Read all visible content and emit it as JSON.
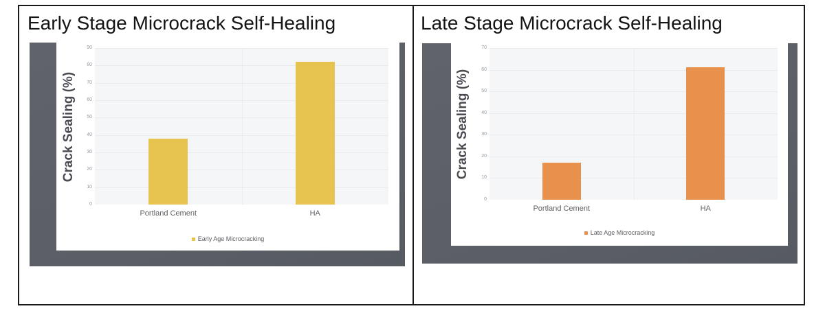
{
  "colors": {
    "frame_gray": "#60646a",
    "plot_bg": "#f5f6f8",
    "table_border": "#191919"
  },
  "chart_data": [
    {
      "type": "bar",
      "title": "Early Stage Microcrack Self-Healing",
      "categories": [
        "Portland Cement",
        "HA"
      ],
      "values": [
        38,
        82
      ],
      "xlabel": "",
      "ylabel": "Crack Sealing (%)",
      "ylim": [
        0,
        90
      ],
      "ytick_step": 10,
      "grid": true,
      "legend": [
        "Early Age Microcracking"
      ],
      "legend_position": "bottom",
      "bar_color": "#e7c34f"
    },
    {
      "type": "bar",
      "title": "Late Stage Microcrack Self-Healing",
      "categories": [
        "Portland Cement",
        "HA"
      ],
      "values": [
        17,
        61
      ],
      "xlabel": "",
      "ylabel": "Crack Sealing (%)",
      "ylim": [
        0,
        70
      ],
      "ytick_step": 10,
      "grid": true,
      "legend": [
        "Late Age Microcracking"
      ],
      "legend_position": "bottom",
      "bar_color": "#e8914d"
    }
  ]
}
